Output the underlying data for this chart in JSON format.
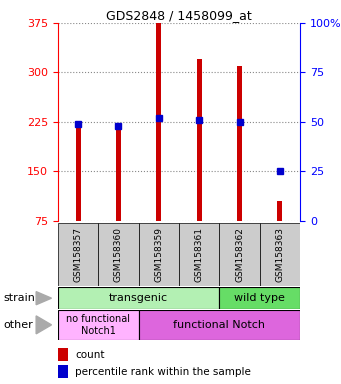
{
  "title": "GDS2848 / 1458099_at",
  "samples": [
    "GSM158357",
    "GSM158360",
    "GSM158359",
    "GSM158361",
    "GSM158362",
    "GSM158363"
  ],
  "counts": [
    220,
    215,
    375,
    320,
    310,
    105
  ],
  "percentiles": [
    49,
    48,
    52,
    51,
    50,
    25
  ],
  "ymin": 75,
  "ymax": 375,
  "yticks_left": [
    75,
    150,
    225,
    300,
    375
  ],
  "yticks_right": [
    0,
    25,
    50,
    75,
    100
  ],
  "bar_color": "#cc0000",
  "dot_color": "#0000cc",
  "strain_label_transgenic": "transgenic",
  "strain_label_wildtype": "wild type",
  "other_label_nofunc": "no functional\nNotch1",
  "other_label_func": "functional Notch",
  "strain_row_label": "strain",
  "other_row_label": "other",
  "legend_count": "count",
  "legend_percentile": "percentile rank within the sample",
  "light_green": "#b3f0b3",
  "green": "#66dd66",
  "pink_light": "#ffb3ff",
  "magenta": "#dd66dd",
  "gray_bg": "#cccccc"
}
